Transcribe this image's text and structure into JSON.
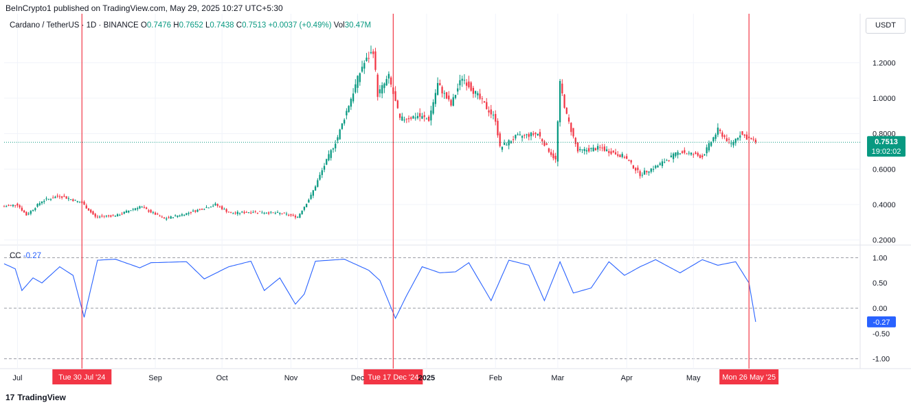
{
  "header": {
    "publisher": "BeInCrypto1 published on TradingView.com, May 29, 2025 10:27 UTC+5:30"
  },
  "legend": {
    "symbol": "Cardano / TetherUS · 1D · BINANCE",
    "open_label": "O",
    "open": "0.7476",
    "high_label": "H",
    "high": "0.7652",
    "low_label": "L",
    "low": "0.7438",
    "close_label": "C",
    "close": "0.7513",
    "change": "+0.0037 (+0.49%)",
    "volume_label": "Vol",
    "volume": "30.47M"
  },
  "currency": "USDT",
  "price_badge": {
    "value": "0.7513",
    "countdown": "19:02:02",
    "color": "#089981"
  },
  "cc_legend": {
    "name": "CC",
    "value": "-0.27"
  },
  "cc_badge": {
    "value": "-0.27",
    "color": "#2962ff"
  },
  "branding": {
    "logo": "17",
    "name": "TradingView"
  },
  "colors": {
    "up": "#089981",
    "down": "#f23645",
    "cc_line": "#2962ff",
    "marker": "#f23645"
  },
  "chart_data": [
    {
      "type": "candlestick",
      "title": "Cardano / TetherUS · 1D · BINANCE",
      "y_axis_ticks": [
        "1.2000",
        "1.0000",
        "0.8000",
        "0.6000",
        "0.4000",
        "0.2000"
      ],
      "ylim": [
        0.16,
        1.36
      ],
      "x_axis_ticks": [
        "Jul",
        "Sep",
        "Oct",
        "Nov",
        "Dec",
        "2025",
        "Feb",
        "Mar",
        "Apr",
        "May"
      ],
      "xlim": [
        "2024-06-25",
        "2025-07-15"
      ],
      "last_price": 0.7513,
      "anchors": [
        [
          "2024-06-25",
          0.39
        ],
        [
          "2024-07-01",
          0.4
        ],
        [
          "2024-07-05",
          0.34
        ],
        [
          "2024-07-12",
          0.42
        ],
        [
          "2024-07-20",
          0.45
        ],
        [
          "2024-07-30",
          0.41
        ],
        [
          "2024-08-05",
          0.33
        ],
        [
          "2024-08-15",
          0.34
        ],
        [
          "2024-08-25",
          0.39
        ],
        [
          "2024-09-05",
          0.32
        ],
        [
          "2024-09-15",
          0.35
        ],
        [
          "2024-09-28",
          0.4
        ],
        [
          "2024-10-05",
          0.35
        ],
        [
          "2024-10-15",
          0.36
        ],
        [
          "2024-10-28",
          0.35
        ],
        [
          "2024-11-04",
          0.33
        ],
        [
          "2024-11-10",
          0.45
        ],
        [
          "2024-11-16",
          0.62
        ],
        [
          "2024-11-22",
          0.78
        ],
        [
          "2024-11-28",
          1.0
        ],
        [
          "2024-12-03",
          1.18
        ],
        [
          "2024-12-08",
          1.27
        ],
        [
          "2024-12-10",
          1.02
        ],
        [
          "2024-12-15",
          1.12
        ],
        [
          "2024-12-20",
          0.88
        ],
        [
          "2024-12-28",
          0.9
        ],
        [
          "2025-01-02",
          0.88
        ],
        [
          "2025-01-06",
          1.08
        ],
        [
          "2025-01-12",
          0.96
        ],
        [
          "2025-01-17",
          1.12
        ],
        [
          "2025-01-26",
          0.98
        ],
        [
          "2025-02-01",
          0.88
        ],
        [
          "2025-02-03",
          0.72
        ],
        [
          "2025-02-10",
          0.78
        ],
        [
          "2025-02-20",
          0.8
        ],
        [
          "2025-02-28",
          0.65
        ],
        [
          "2025-03-02",
          1.08
        ],
        [
          "2025-03-05",
          0.9
        ],
        [
          "2025-03-10",
          0.7
        ],
        [
          "2025-03-20",
          0.72
        ],
        [
          "2025-03-31",
          0.67
        ],
        [
          "2025-04-07",
          0.57
        ],
        [
          "2025-04-15",
          0.62
        ],
        [
          "2025-04-25",
          0.7
        ],
        [
          "2025-05-05",
          0.67
        ],
        [
          "2025-05-12",
          0.82
        ],
        [
          "2025-05-18",
          0.74
        ],
        [
          "2025-05-22",
          0.8
        ],
        [
          "2025-05-29",
          0.7513
        ]
      ]
    },
    {
      "type": "line",
      "title": "CC -0.27",
      "y_axis_ticks": [
        "1.00",
        "0.50",
        "0.00",
        "-0.50",
        "-1.00"
      ],
      "ylim": [
        -1.1,
        1.1
      ],
      "levels": [
        1.0,
        0.0,
        -1.0
      ],
      "last_value": -0.27,
      "anchors": [
        [
          "2024-06-25",
          0.88
        ],
        [
          "2024-06-30",
          0.78
        ],
        [
          "2024-07-03",
          0.35
        ],
        [
          "2024-07-08",
          0.6
        ],
        [
          "2024-07-12",
          0.5
        ],
        [
          "2024-07-20",
          0.82
        ],
        [
          "2024-07-26",
          0.65
        ],
        [
          "2024-07-31",
          -0.18
        ],
        [
          "2024-08-06",
          0.95
        ],
        [
          "2024-08-14",
          0.97
        ],
        [
          "2024-08-25",
          0.8
        ],
        [
          "2024-08-30",
          0.9
        ],
        [
          "2024-09-15",
          0.92
        ],
        [
          "2024-09-23",
          0.58
        ],
        [
          "2024-10-04",
          0.82
        ],
        [
          "2024-10-14",
          0.93
        ],
        [
          "2024-10-20",
          0.35
        ],
        [
          "2024-10-27",
          0.6
        ],
        [
          "2024-11-03",
          0.08
        ],
        [
          "2024-11-07",
          0.28
        ],
        [
          "2024-11-12",
          0.93
        ],
        [
          "2024-11-25",
          0.97
        ],
        [
          "2024-12-06",
          0.75
        ],
        [
          "2024-12-11",
          0.55
        ],
        [
          "2024-12-18",
          -0.2
        ],
        [
          "2024-12-23",
          0.25
        ],
        [
          "2024-12-30",
          0.82
        ],
        [
          "2025-01-07",
          0.7
        ],
        [
          "2025-01-14",
          0.72
        ],
        [
          "2025-01-20",
          0.9
        ],
        [
          "2025-01-30",
          0.15
        ],
        [
          "2025-02-07",
          0.95
        ],
        [
          "2025-02-16",
          0.85
        ],
        [
          "2025-02-23",
          0.15
        ],
        [
          "2025-03-02",
          0.92
        ],
        [
          "2025-03-08",
          0.3
        ],
        [
          "2025-03-16",
          0.4
        ],
        [
          "2025-03-24",
          0.92
        ],
        [
          "2025-03-31",
          0.65
        ],
        [
          "2025-04-07",
          0.82
        ],
        [
          "2025-04-14",
          0.96
        ],
        [
          "2025-04-25",
          0.7
        ],
        [
          "2025-05-05",
          0.96
        ],
        [
          "2025-05-12",
          0.85
        ],
        [
          "2025-05-20",
          0.92
        ],
        [
          "2025-05-26",
          0.5
        ],
        [
          "2025-05-29",
          -0.27
        ]
      ]
    }
  ],
  "markers": [
    {
      "date": "2024-07-30",
      "label": "Tue 30 Jul '24"
    },
    {
      "date": "2024-12-17",
      "label": "Tue 17 Dec '24"
    },
    {
      "date": "2025-05-26",
      "label": "Mon 26 May '25"
    }
  ]
}
